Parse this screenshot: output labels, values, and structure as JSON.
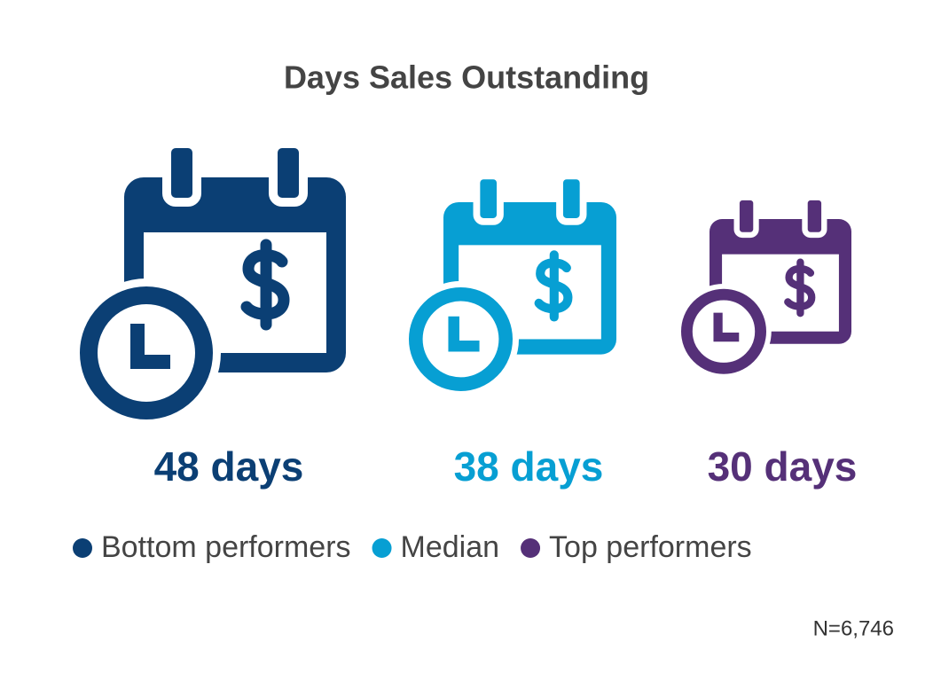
{
  "title": "Days Sales Outstanding",
  "items": [
    {
      "value_label": "48 days",
      "legend": "Bottom performers",
      "color": "#0b3f74"
    },
    {
      "value_label": "38 days",
      "legend": "Median",
      "color": "#079fd3"
    },
    {
      "value_label": "30 days",
      "legend": "Top performers",
      "color": "#553078"
    }
  ],
  "note": "N=6,746"
}
